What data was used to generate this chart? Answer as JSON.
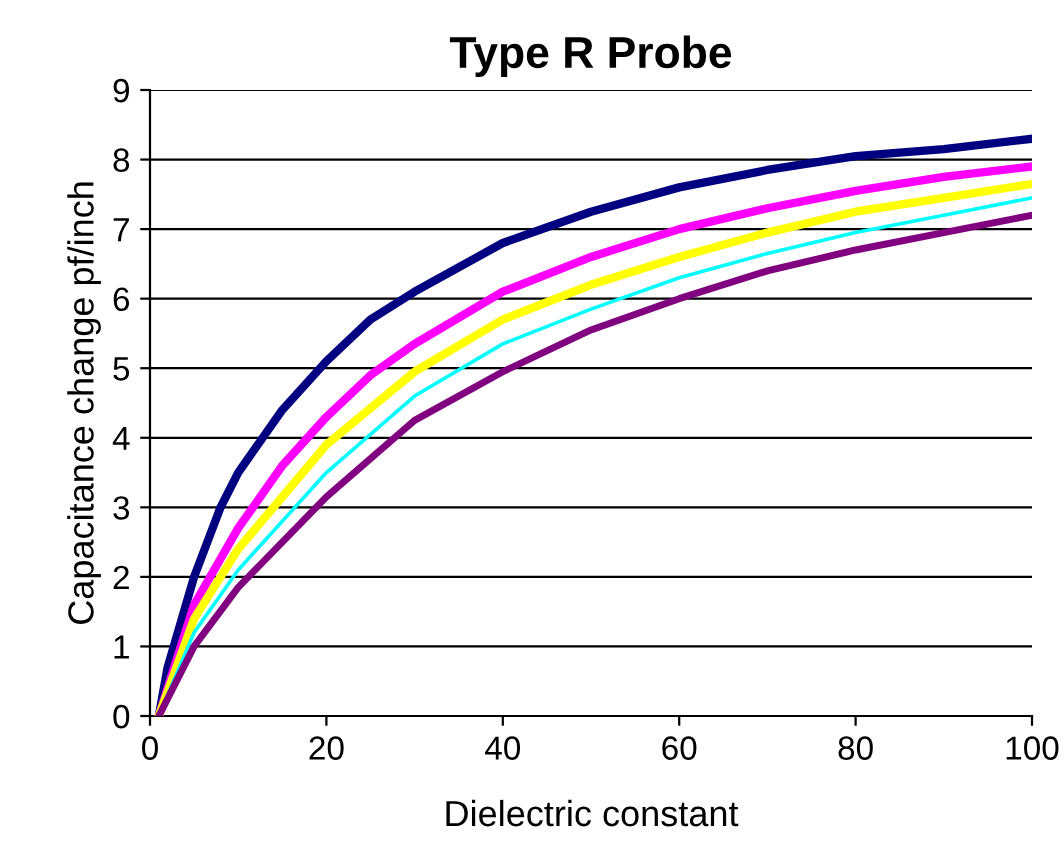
{
  "chart_data": {
    "type": "line",
    "title": "Type R Probe",
    "xlabel": "Dielectric constant",
    "ylabel": "Capacitance change pf/inch",
    "xlim": [
      0,
      100
    ],
    "xticks": [
      0,
      20,
      40,
      60,
      80,
      100
    ],
    "ylim": [
      0,
      9
    ],
    "yticks": [
      0,
      1,
      2,
      3,
      4,
      5,
      6,
      7,
      8,
      9
    ],
    "grid": "y",
    "legend": false,
    "marker": "none",
    "line_style": "solid",
    "series": [
      {
        "color": "#000080",
        "x": [
          1,
          2,
          5,
          8,
          10,
          15,
          20,
          25,
          30,
          40,
          50,
          60,
          70,
          80,
          90,
          100
        ],
        "values": [
          0,
          0.7,
          2,
          3,
          3.5,
          4.4,
          5.1,
          5.7,
          6.1,
          6.8,
          7.25,
          7.6,
          7.85,
          8.05,
          8.15,
          8.3
        ]
      },
      {
        "color": "#ff00ff",
        "x": [
          1,
          3,
          5,
          10,
          15,
          20,
          25,
          30,
          40,
          50,
          60,
          70,
          80,
          90,
          100
        ],
        "values": [
          0,
          0.8,
          1.6,
          2.7,
          3.6,
          4.3,
          4.9,
          5.35,
          6.1,
          6.6,
          7.0,
          7.3,
          7.55,
          7.75,
          7.9
        ]
      },
      {
        "color": "#ffff00",
        "x": [
          1,
          5,
          10,
          20,
          30,
          40,
          50,
          60,
          70,
          80,
          90,
          100
        ],
        "values": [
          0,
          1.4,
          2.4,
          3.9,
          4.95,
          5.7,
          6.2,
          6.6,
          6.95,
          7.25,
          7.45,
          7.65
        ]
      },
      {
        "color": "#00ffff",
        "x": [
          1,
          5,
          10,
          20,
          30,
          40,
          50,
          60,
          70,
          80,
          90,
          100
        ],
        "values": [
          0,
          1.2,
          2.1,
          3.5,
          4.6,
          5.35,
          5.85,
          6.3,
          6.65,
          6.95,
          7.2,
          7.45
        ]
      },
      {
        "color": "#800080",
        "x": [
          1,
          5,
          10,
          20,
          30,
          40,
          50,
          60,
          70,
          80,
          90,
          100
        ],
        "values": [
          0,
          1.0,
          1.85,
          3.15,
          4.25,
          4.95,
          5.55,
          6.0,
          6.4,
          6.7,
          6.95,
          7.2
        ]
      }
    ]
  }
}
